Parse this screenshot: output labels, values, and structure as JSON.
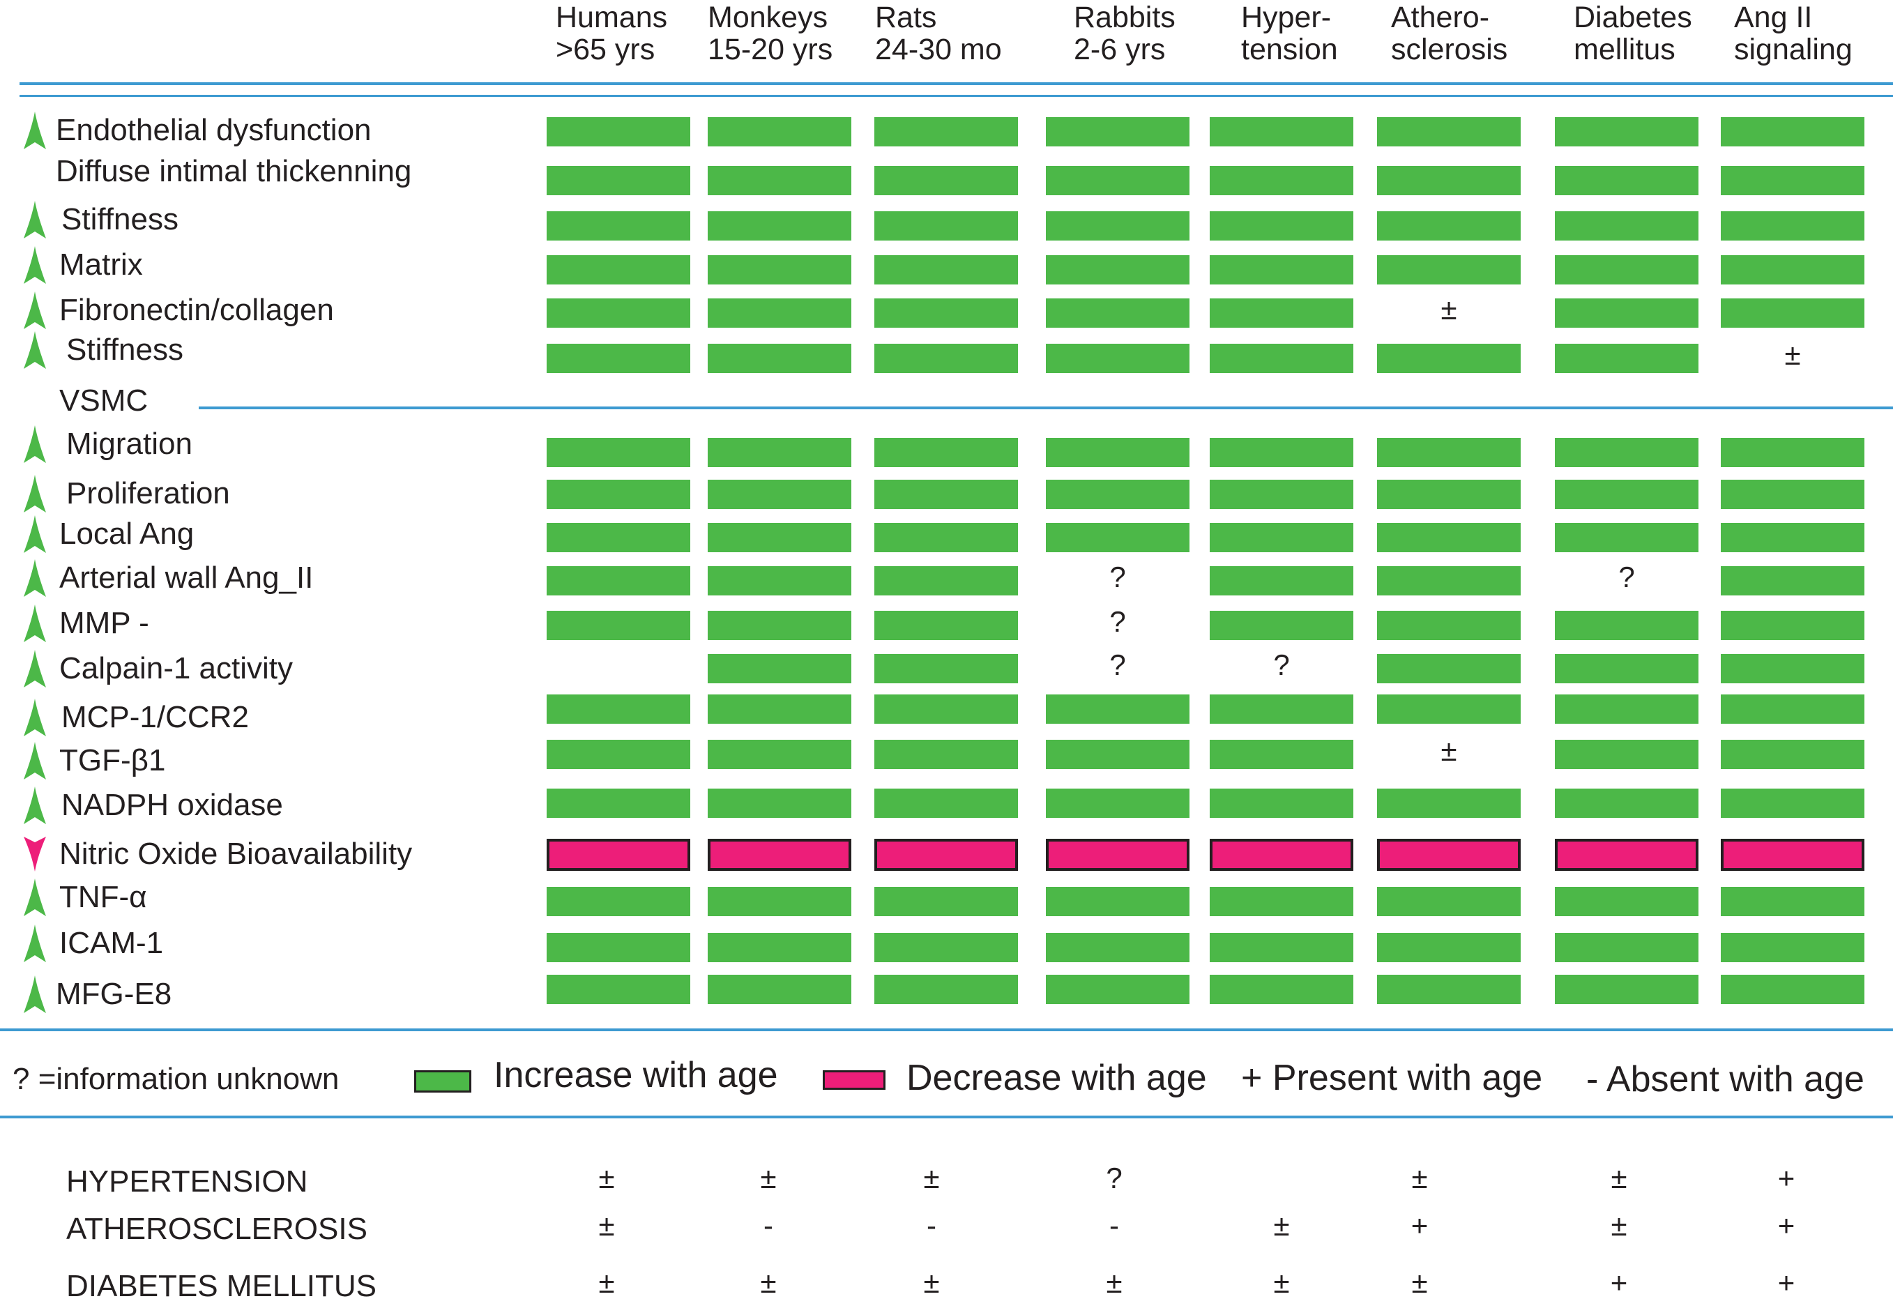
{
  "columns": [
    {
      "line1": "Humans",
      "line2": ">65 yrs"
    },
    {
      "line1": "Monkeys",
      "line2": "15-20 yrs"
    },
    {
      "line1": "Rats",
      "line2": "24-30 mo"
    },
    {
      "line1": "Rabbits",
      "line2": "2-6 yrs"
    },
    {
      "line1": "Hyper-",
      "line2": "tension"
    },
    {
      "line1": "Athero-",
      "line2": "sclerosis"
    },
    {
      "line1": "Diabetes",
      "line2": "mellitus"
    },
    {
      "line1": "Ang II",
      "line2": "signaling"
    }
  ],
  "rows": [
    {
      "label": "Endothelial dysfunction",
      "arrow": "up",
      "cells": [
        "inc",
        "inc",
        "inc",
        "inc",
        "inc",
        "inc",
        "inc",
        "inc"
      ]
    },
    {
      "label": "Diffuse intimal thickenning",
      "arrow": "none",
      "cells": [
        "inc",
        "inc",
        "inc",
        "inc",
        "inc",
        "inc",
        "inc",
        "inc"
      ]
    },
    {
      "label": "Stiffness",
      "arrow": "up",
      "cells": [
        "inc",
        "inc",
        "inc",
        "inc",
        "inc",
        "inc",
        "inc",
        "inc"
      ]
    },
    {
      "label": "Matrix",
      "arrow": "up",
      "cells": [
        "inc",
        "inc",
        "inc",
        "inc",
        "inc",
        "inc",
        "inc",
        "inc"
      ]
    },
    {
      "label": "Fibronectin/collagen",
      "arrow": "up",
      "cells": [
        "inc",
        "inc",
        "inc",
        "inc",
        "inc",
        "±",
        "inc",
        "inc"
      ]
    },
    {
      "label": "Stiffness",
      "arrow": "up",
      "cells": [
        "inc",
        "inc",
        "inc",
        "inc",
        "inc",
        "inc",
        "inc",
        "±"
      ]
    },
    {
      "label": "VSMC",
      "arrow": "none",
      "cells": [
        "",
        "",
        "",
        "",
        "",
        "",
        "",
        ""
      ]
    },
    {
      "label": "Migration",
      "arrow": "up",
      "cells": [
        "inc",
        "inc",
        "inc",
        "inc",
        "inc",
        "inc",
        "inc",
        "inc"
      ]
    },
    {
      "label": "Proliferation",
      "arrow": "up",
      "cells": [
        "inc",
        "inc",
        "inc",
        "inc",
        "inc",
        "inc",
        "inc",
        "inc"
      ]
    },
    {
      "label": "Local Ang",
      "arrow": "up",
      "cells": [
        "inc",
        "inc",
        "inc",
        "inc",
        "inc",
        "inc",
        "inc",
        "inc"
      ]
    },
    {
      "label": "Arterial wall Ang_II",
      "arrow": "up",
      "cells": [
        "inc",
        "inc",
        "inc",
        "?",
        "inc",
        "inc",
        "?",
        "inc"
      ]
    },
    {
      "label": "MMP -",
      "arrow": "up",
      "cells": [
        "inc",
        "inc",
        "inc",
        "?",
        "inc",
        "inc",
        "inc",
        "inc"
      ]
    },
    {
      "label": "Calpain-1 activity",
      "arrow": "up",
      "cells": [
        "",
        "inc",
        "inc",
        "?",
        "?",
        "inc",
        "inc",
        "inc"
      ]
    },
    {
      "label": "MCP-1/CCR2",
      "arrow": "up",
      "cells": [
        "inc",
        "inc",
        "inc",
        "inc",
        "inc",
        "inc",
        "inc",
        "inc"
      ]
    },
    {
      "label": "TGF-β1",
      "arrow": "up",
      "cells": [
        "inc",
        "inc",
        "inc",
        "inc",
        "inc",
        "±",
        "inc",
        "inc"
      ]
    },
    {
      "label": "NADPH oxidase",
      "arrow": "up",
      "cells": [
        "inc",
        "inc",
        "inc",
        "inc",
        "inc",
        "inc",
        "inc",
        "inc"
      ]
    },
    {
      "label": "Nitric Oxide Bioavailability",
      "arrow": "down",
      "cells": [
        "dec",
        "dec",
        "dec",
        "dec",
        "dec",
        "dec",
        "dec",
        "dec"
      ]
    },
    {
      "label": "TNF-α",
      "arrow": "up",
      "cells": [
        "inc",
        "inc",
        "inc",
        "inc",
        "inc",
        "inc",
        "inc",
        "inc"
      ]
    },
    {
      "label": "ICAM-1",
      "arrow": "up",
      "cells": [
        "inc",
        "inc",
        "inc",
        "inc",
        "inc",
        "inc",
        "inc",
        "inc"
      ]
    },
    {
      "label": "MFG-E8",
      "arrow": "up",
      "cells": [
        "inc",
        "inc",
        "inc",
        "inc",
        "inc",
        "inc",
        "inc",
        "inc"
      ]
    }
  ],
  "legend": {
    "unknown": "? =information unknown",
    "increase": "Increase with age",
    "decrease": "Decrease with age",
    "present": "+ Present with age",
    "absent": "- Absent with age"
  },
  "colors": {
    "increase": "#4cb848",
    "decrease": "#ed1e79",
    "rule": "#3d9ad1",
    "arrow_up": "#4cb848",
    "arrow_down": "#ed1e79"
  },
  "diseases": [
    {
      "label": "HYPERTENSION",
      "values": [
        "±",
        "±",
        "±",
        "?",
        "",
        "±",
        "±",
        "+"
      ]
    },
    {
      "label": "ATHEROSCLEROSIS",
      "values": [
        "±",
        "-",
        "-",
        "-",
        "±",
        "+",
        "±",
        "+"
      ]
    },
    {
      "label": "DIABETES MELLITUS",
      "values": [
        "±",
        "±",
        "±",
        "±",
        "±",
        "±",
        "+",
        "+"
      ]
    }
  ]
}
